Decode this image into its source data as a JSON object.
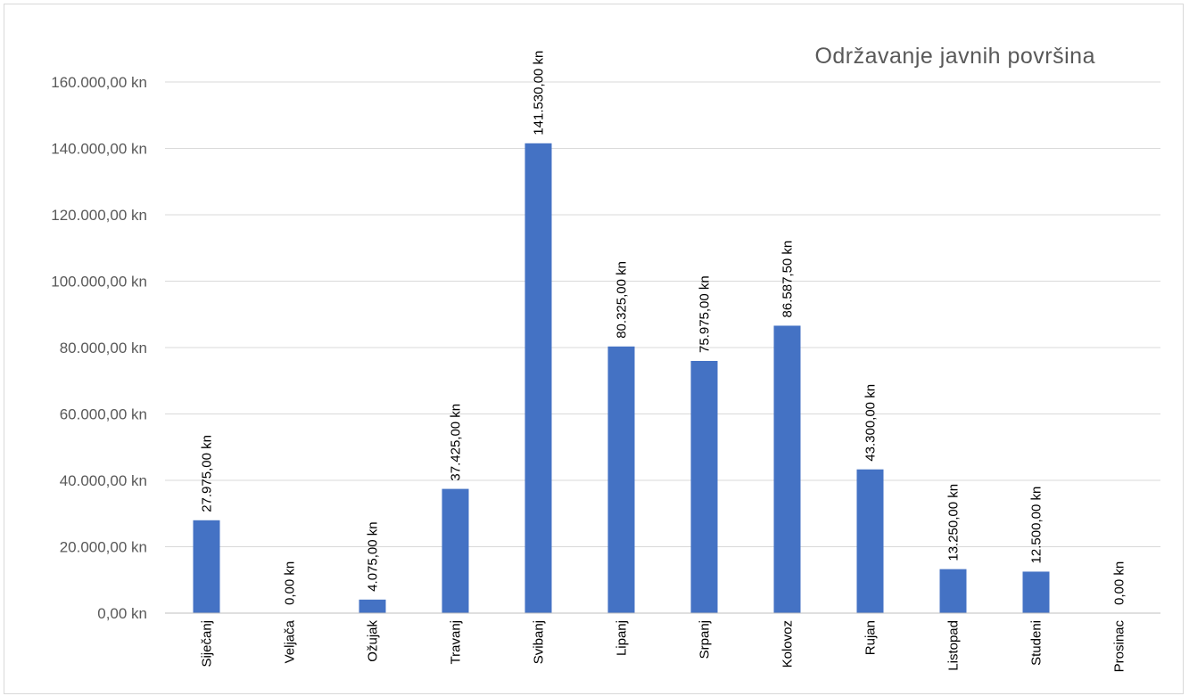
{
  "chart_data": {
    "type": "bar",
    "title": "Održavanje javnih površina",
    "xlabel": "",
    "ylabel": "",
    "categories": [
      "Siječanj",
      "Veljača",
      "Ožujak",
      "Travanj",
      "Svibanj",
      "Lipanj",
      "Srpanj",
      "Kolovoz",
      "Rujan",
      "Listopad",
      "Studeni",
      "Prosinac"
    ],
    "values": [
      27975,
      0,
      4075,
      37425,
      141530,
      80325,
      75975,
      86587.5,
      43300,
      13250,
      12500,
      0
    ],
    "data_labels": [
      "27.975,00 kn",
      "0,00 kn",
      "4.075,00 kn",
      "37.425,00 kn",
      "141.530,00 kn",
      "80.325,00 kn",
      "75.975,00 kn",
      "86.587,50 kn",
      "43.300,00 kn",
      "13.250,00 kn",
      "12.500,00 kn",
      "0,00 kn"
    ],
    "y_ticks": [
      0,
      20000,
      40000,
      60000,
      80000,
      100000,
      120000,
      140000,
      160000
    ],
    "y_tick_labels": [
      "0,00 kn",
      "20.000,00 kn",
      "40.000,00 kn",
      "60.000,00 kn",
      "80.000,00 kn",
      "100.000,00 kn",
      "120.000,00 kn",
      "140.000,00 kn",
      "160.000,00 kn"
    ],
    "ylim": [
      0,
      160000
    ],
    "grid": true,
    "legend": "none",
    "colors": {
      "bar": "#4472c4",
      "grid": "#d9d9d9",
      "axis": "#bfbfbf"
    }
  }
}
